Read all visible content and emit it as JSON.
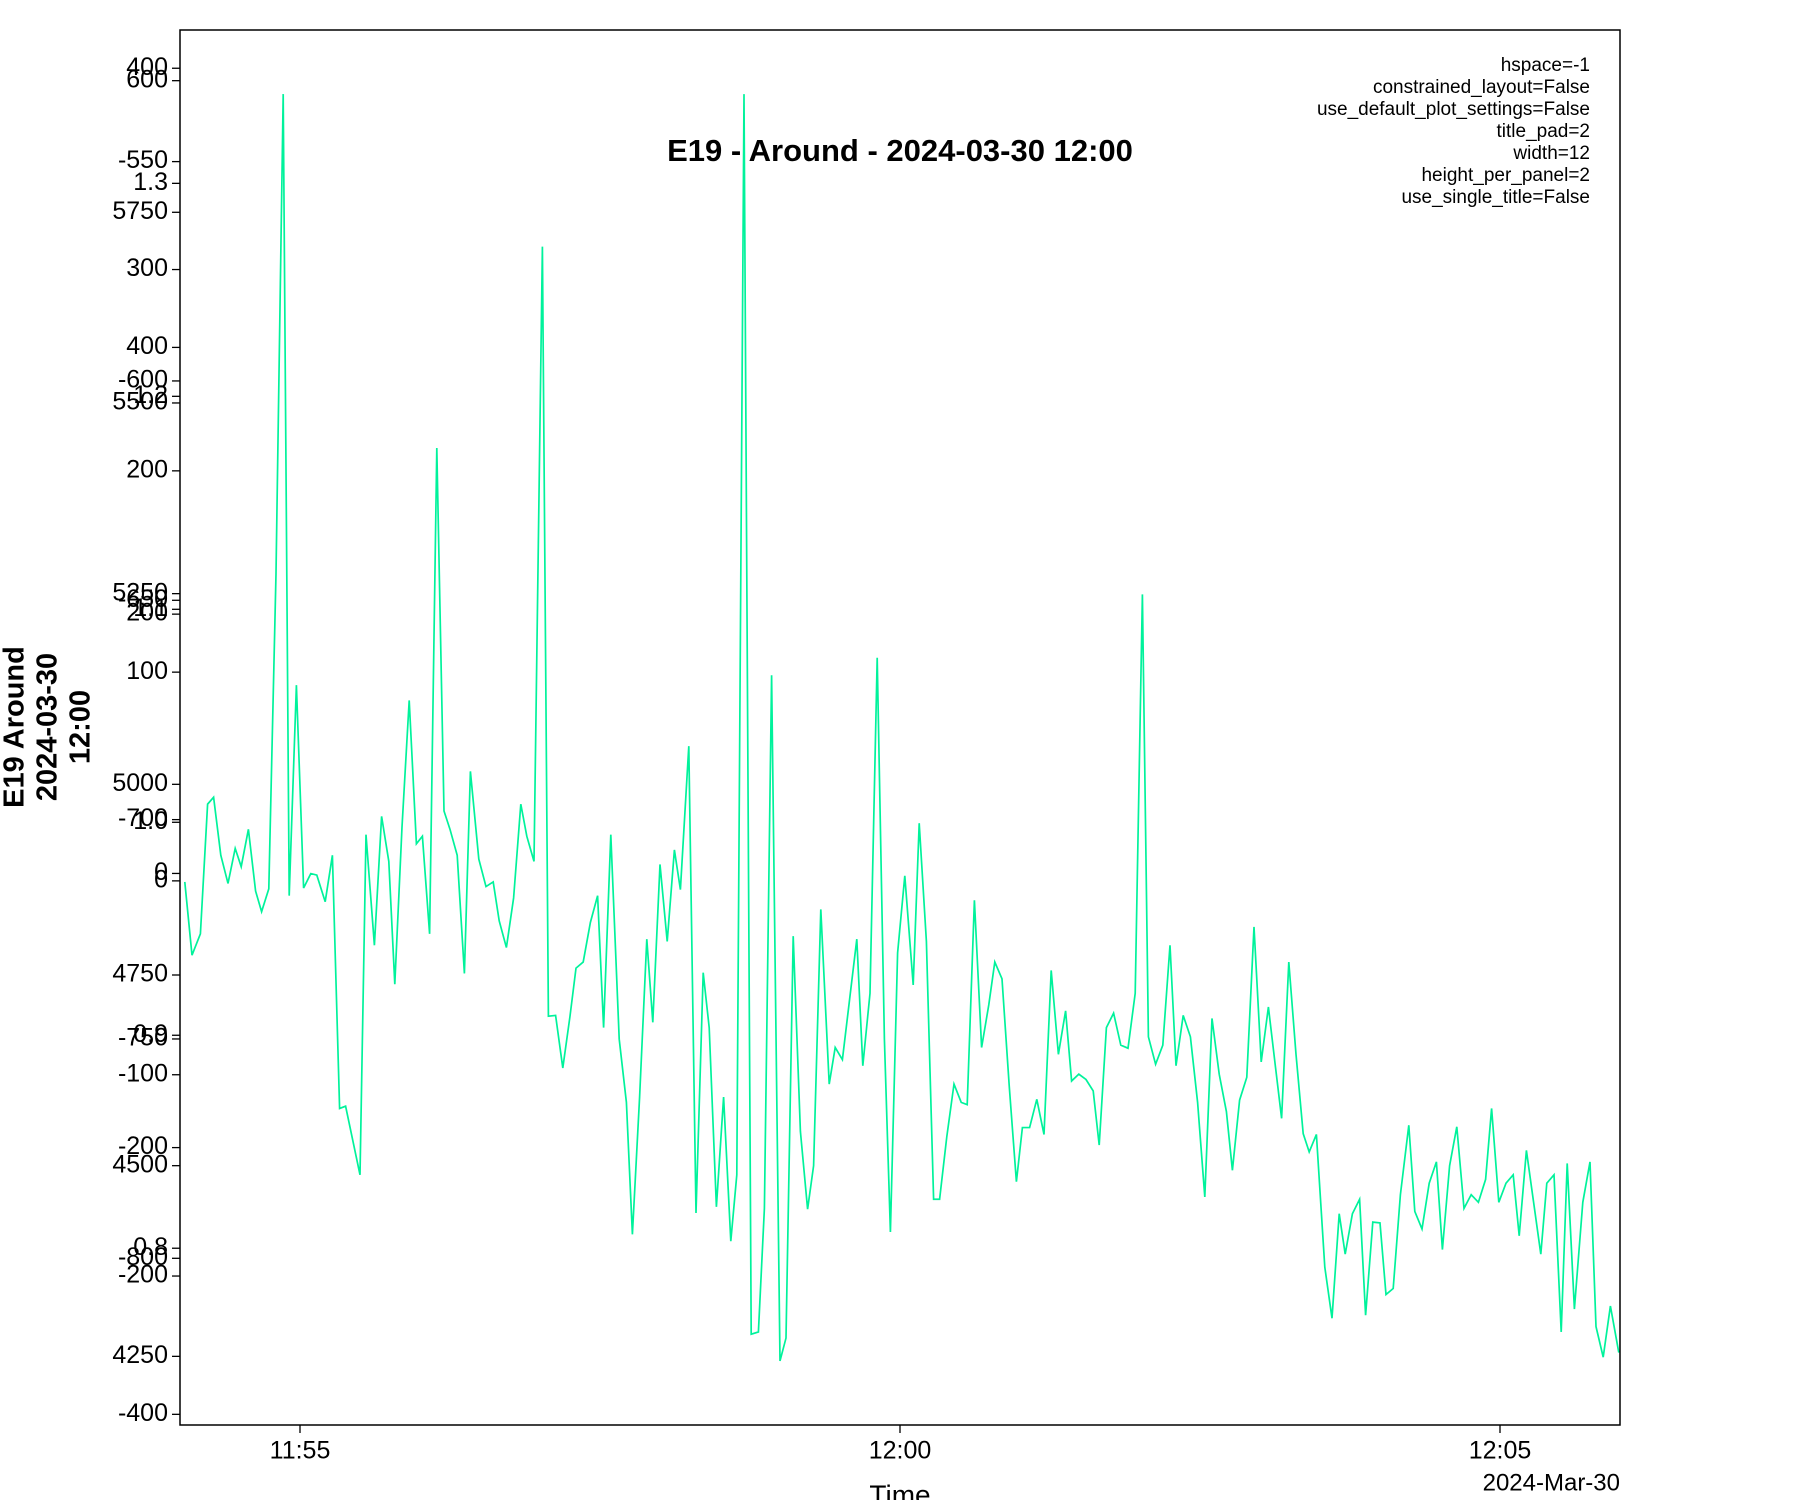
{
  "chart_data": [
    {
      "type": "line",
      "title": "E19 - Around - 2024-03-30 12:00",
      "annotations": [
        "hspace=-1",
        "constrained_layout=False",
        "use_default_plot_settings=False",
        "title_pad=2",
        "width=12",
        "height_per_panel=2",
        "use_single_title=False"
      ],
      "ylabel": [
        "E19 Around",
        "2024-03-30",
        "12:00"
      ],
      "xlabel": "Time",
      "x_offset_label": "2024-Mar-30",
      "xlim": [
        714,
        726
      ],
      "xticks": [
        {
          "value": 715,
          "label": "11:55"
        },
        {
          "value": 720,
          "label": "12:00"
        },
        {
          "value": 725,
          "label": "12:05"
        }
      ],
      "ylim": [
        4160,
        5989
      ],
      "yticks": [
        4250,
        4500,
        4750,
        5000,
        5250,
        5500,
        5750
      ],
      "x": [
        714.04,
        714.1,
        714.17,
        714.23,
        714.28,
        714.34,
        714.4,
        714.46,
        714.51,
        714.57,
        714.63,
        714.68,
        714.74,
        714.8,
        714.86,
        714.91,
        714.97,
        715.03,
        715.09,
        715.14,
        715.21,
        715.27,
        715.33,
        715.38,
        715.5,
        715.55,
        715.62,
        715.68,
        715.74,
        715.79,
        715.85,
        715.91,
        715.97,
        716.02,
        716.08,
        716.14,
        716.2,
        716.25,
        716.31,
        716.37,
        716.42,
        716.49,
        716.55,
        716.61,
        716.66,
        716.72,
        716.78,
        716.84,
        716.89,
        716.95,
        717.02,
        717.07,
        717.13,
        717.19,
        717.25,
        717.3,
        717.36,
        717.42,
        717.48,
        717.53,
        717.59,
        717.66,
        717.72,
        717.77,
        717.83,
        717.89,
        717.94,
        718.0,
        718.06,
        718.12,
        718.17,
        718.24,
        718.3,
        718.36,
        718.41,
        718.47,
        718.53,
        718.59,
        718.64,
        718.7,
        718.76,
        718.82,
        718.87,
        718.93,
        719.0,
        719.05,
        719.11,
        719.17,
        719.23,
        719.28,
        719.34,
        719.41,
        719.46,
        719.52,
        719.58,
        719.64,
        719.69,
        719.75,
        719.81,
        719.87,
        719.92,
        719.98,
        720.04,
        720.11,
        720.16,
        720.22,
        720.28,
        720.33,
        720.39,
        720.45,
        720.51,
        720.56,
        720.62,
        720.68,
        720.74,
        720.79,
        720.85,
        720.91,
        720.97,
        721.02,
        721.08,
        721.14,
        721.2,
        721.26,
        721.32,
        721.38,
        721.43,
        721.49,
        721.55,
        721.61,
        721.66,
        721.72,
        721.78,
        721.84,
        721.9,
        721.96,
        722.02,
        722.07,
        722.13,
        722.19,
        722.25,
        722.3,
        722.36,
        722.42,
        722.48,
        722.54,
        722.6,
        722.66,
        722.72,
        722.77,
        722.83,
        722.89,
        722.95,
        723.01,
        723.07,
        723.13,
        723.18,
        723.24,
        723.3,
        723.36,
        723.41,
        723.47,
        723.54,
        723.6,
        723.66,
        723.71,
        723.77,
        723.83,
        723.88,
        723.94,
        724.0,
        724.05,
        724.11,
        724.17,
        724.24,
        724.29,
        724.35,
        724.41,
        724.47,
        724.52,
        724.58,
        724.64,
        724.7,
        724.76,
        724.82,
        724.88,
        724.93,
        724.99,
        725.05,
        725.11,
        725.16,
        725.22,
        725.28,
        725.34,
        725.39,
        725.45,
        725.51,
        725.56,
        725.62,
        725.69,
        725.75,
        725.8,
        725.86,
        725.92,
        725.99
      ],
      "series": [
        {
          "color": "#00f29b",
          "values": [
            4872,
            4776,
            4804,
            4974,
            4983,
            4907,
            4870,
            4916,
            4892,
            4941,
            4860,
            4833,
            4863,
            5276,
            5905,
            4854,
            5130,
            4864,
            4883,
            4881,
            4846,
            4907,
            4575,
            4578,
            4488,
            4934,
            4789,
            4958,
            4899,
            4738,
            4944,
            5110,
            4922,
            4932,
            4804,
            5441,
            4965,
            4941,
            4907,
            4752,
            5017,
            4902,
            4866,
            4872,
            4821,
            4786,
            4851,
            4974,
            4932,
            4899,
            5705,
            4696,
            4697,
            4628,
            4696,
            4759,
            4767,
            4819,
            4854,
            4681,
            4934,
            4666,
            4583,
            4410,
            4590,
            4797,
            4688,
            4895,
            4794,
            4914,
            4862,
            5050,
            4438,
            4753,
            4681,
            4446,
            4590,
            4401,
            4488,
            5905,
            4279,
            4282,
            4444,
            5143,
            4244,
            4274,
            4801,
            4545,
            4443,
            4500,
            4836,
            4607,
            4655,
            4639,
            4718,
            4797,
            4631,
            4726,
            5166,
            4666,
            4413,
            4779,
            4880,
            4737,
            4949,
            4794,
            4456,
            4456,
            4538,
            4607,
            4583,
            4580,
            4848,
            4655,
            4711,
            4767,
            4745,
            4605,
            4479,
            4550,
            4550,
            4587,
            4541,
            4756,
            4646,
            4703,
            4611,
            4620,
            4613,
            4598,
            4527,
            4681,
            4700,
            4658,
            4654,
            4726,
            5249,
            4669,
            4633,
            4658,
            4789,
            4631,
            4697,
            4669,
            4583,
            4459,
            4693,
            4620,
            4571,
            4494,
            4586,
            4616,
            4813,
            4636,
            4708,
            4628,
            4562,
            4767,
            4646,
            4542,
            4518,
            4541,
            4367,
            4300,
            4437,
            4384,
            4437,
            4456,
            4304,
            4426,
            4425,
            4331,
            4339,
            4462,
            4553,
            4440,
            4417,
            4477,
            4505,
            4390,
            4500,
            4551,
            4444,
            4462,
            4452,
            4482,
            4575,
            4452,
            4477,
            4488,
            4408,
            4520,
            4452,
            4384,
            4477,
            4488,
            4282,
            4503,
            4312,
            4452,
            4505,
            4289,
            4249,
            4316,
            4255
          ]
        }
      ]
    },
    {
      "type": "line",
      "ylim": [
        -274,
        419
      ],
      "yticks": [
        -200,
        -100,
        0,
        100,
        200,
        300,
        400
      ]
    },
    {
      "type": "line",
      "ylim": [
        -408,
        638
      ],
      "yticks": [
        -400,
        -200,
        0,
        200,
        400,
        600
      ]
    },
    {
      "type": "line",
      "ylim": [
        -838,
        -520
      ],
      "yticks": [
        -800,
        -750,
        -700,
        -650,
        -600,
        -550
      ]
    },
    {
      "type": "line",
      "ylim": [
        0.717,
        1.372
      ],
      "yticks": [
        0.8,
        0.9,
        {
          "value": 1,
          "label": "1.0"
        },
        1.1,
        1.2,
        1.3
      ]
    }
  ]
}
